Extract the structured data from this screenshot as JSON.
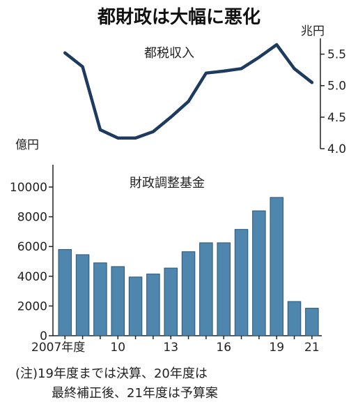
{
  "title": "都財政は大幅に悪化",
  "note": {
    "line1": "(注)19年度までは決算、20年度は",
    "line2": "最終補正後、21年度は予算案"
  },
  "colors": {
    "line": "#1d3a5f",
    "bar": "#4f86ad",
    "bar_edge": "#2a5578",
    "axis": "#222222"
  },
  "chart_data": [
    {
      "type": "line",
      "title": "都税収入",
      "ylabel": "兆円",
      "ylim": [
        4.0,
        5.75
      ],
      "yticks": [
        4.0,
        4.5,
        5.0,
        5.5
      ],
      "ytick_labels": [
        "4.0",
        "4.5",
        "5.0",
        "5.5"
      ],
      "x": [
        "2007",
        "2008",
        "2009",
        "2010",
        "2011",
        "2012",
        "2013",
        "2014",
        "2015",
        "2016",
        "2017",
        "2018",
        "2019",
        "2020",
        "2021"
      ],
      "values": [
        5.52,
        5.3,
        4.3,
        4.17,
        4.17,
        4.27,
        4.5,
        4.75,
        5.2,
        5.23,
        5.27,
        5.45,
        5.65,
        5.27,
        5.05
      ]
    },
    {
      "type": "bar",
      "title": "財政調整基金",
      "ylabel": "億円",
      "ylim": [
        0,
        11500
      ],
      "yticks": [
        0,
        2000,
        4000,
        6000,
        8000,
        10000
      ],
      "ytick_labels": [
        "0",
        "2000",
        "4000",
        "6000",
        "8000",
        "10000"
      ],
      "categories": [
        "2007",
        "2008",
        "2009",
        "2010",
        "2011",
        "2012",
        "2013",
        "2014",
        "2015",
        "2016",
        "2017",
        "2018",
        "2019",
        "2020",
        "2021"
      ],
      "xtick_labels": [
        "2007年度",
        "",
        "",
        "10",
        "",
        "",
        "13",
        "",
        "",
        "16",
        "",
        "",
        "19",
        "",
        "21"
      ],
      "values": [
        5800,
        5450,
        4900,
        4650,
        3950,
        4150,
        4550,
        5650,
        6250,
        6250,
        7150,
        8400,
        9300,
        2300,
        1850
      ]
    }
  ]
}
